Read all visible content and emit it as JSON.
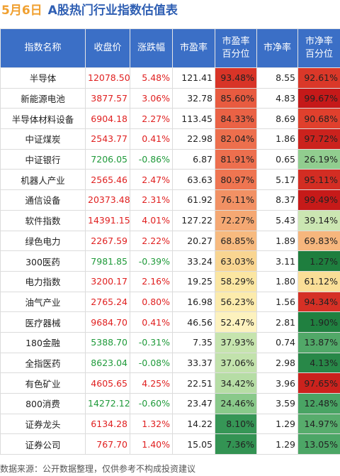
{
  "header": {
    "date": "5月6日",
    "title": "A股热门行业指数估值表"
  },
  "table": {
    "columns": [
      "指数名称",
      "收盘价",
      "涨跌幅",
      "市盈率",
      "市盈率\n百分位",
      "市净率",
      "市净率\n百分位"
    ],
    "rows": [
      [
        "半导体",
        "12078.50",
        "5.48%",
        "121.41",
        "93.48%",
        "8.55",
        "92.61%"
      ],
      [
        "新能源电池",
        "3877.57",
        "3.06%",
        "32.78",
        "85.60%",
        "4.83",
        "99.67%"
      ],
      [
        "半导体材料设备",
        "6904.18",
        "2.27%",
        "113.45",
        "84.33%",
        "8.69",
        "90.68%"
      ],
      [
        "中证煤炭",
        "2543.77",
        "0.41%",
        "22.98",
        "82.04%",
        "1.86",
        "97.72%"
      ],
      [
        "中证银行",
        "7206.05",
        "-0.86%",
        "6.87",
        "81.91%",
        "0.65",
        "26.19%"
      ],
      [
        "机器人产业",
        "2565.46",
        "2.47%",
        "63.63",
        "80.97%",
        "5.17",
        "95.11%"
      ],
      [
        "通信设备",
        "20373.48",
        "2.31%",
        "61.92",
        "76.11%",
        "8.37",
        "99.49%"
      ],
      [
        "软件指数",
        "14391.15",
        "4.01%",
        "127.22",
        "72.27%",
        "5.43",
        "39.14%"
      ],
      [
        "绿色电力",
        "2267.59",
        "2.22%",
        "20.27",
        "68.85%",
        "1.89",
        "69.83%"
      ],
      [
        "300医药",
        "7981.85",
        "-0.39%",
        "33.24",
        "63.03%",
        "3.11",
        "1.27%"
      ],
      [
        "电力指数",
        "3200.17",
        "2.16%",
        "19.25",
        "58.29%",
        "1.80",
        "61.12%"
      ],
      [
        "油气产业",
        "2765.24",
        "0.80%",
        "16.98",
        "56.23%",
        "1.56",
        "94.34%"
      ],
      [
        "医疗器械",
        "9684.70",
        "0.41%",
        "46.56",
        "52.47%",
        "2.81",
        "1.90%"
      ],
      [
        "180金融",
        "5388.70",
        "-0.31%",
        "7.35",
        "37.93%",
        "0.74",
        "13.87%"
      ],
      [
        "全指医药",
        "8623.04",
        "-0.08%",
        "33.37",
        "37.06%",
        "2.98",
        "4.13%"
      ],
      [
        "有色矿业",
        "4605.65",
        "4.25%",
        "22.51",
        "34.42%",
        "3.96",
        "97.65%"
      ],
      [
        "800消费",
        "14272.12",
        "-0.60%",
        "23.47",
        "24.46%",
        "3.59",
        "12.48%"
      ],
      [
        "证券龙头",
        "6134.28",
        "1.32%",
        "14.22",
        "8.10%",
        "1.29",
        "14.97%"
      ],
      [
        "证券公司",
        "767.70",
        "1.40%",
        "15.05",
        "7.36%",
        "1.29",
        "13.05%"
      ]
    ]
  },
  "footer": "数据来源：公开数据整理，仅供参考不构成投资建议"
}
